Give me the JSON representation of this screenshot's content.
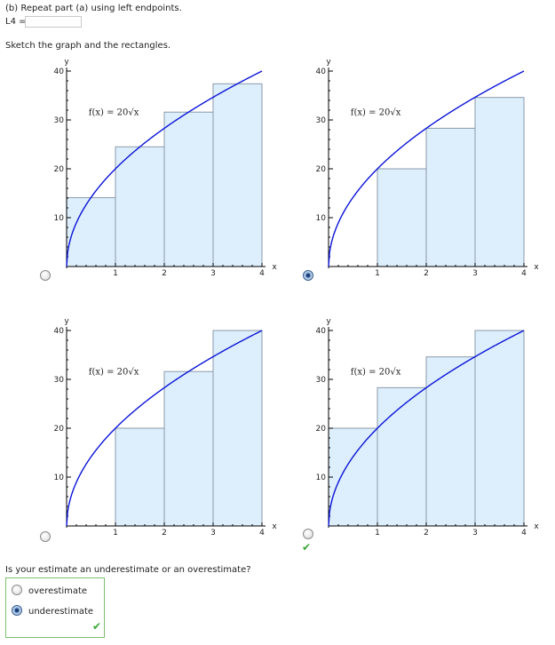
{
  "part_b": {
    "instruction": "(b) Repeat part (a) using left endpoints.",
    "l4_label": "L4 =",
    "l4_value": ""
  },
  "sketch_prompt": "Sketch the graph and the rectangles.",
  "options": [
    {
      "selected": false,
      "checkmark": ""
    },
    {
      "selected": true,
      "checkmark": ""
    },
    {
      "selected": false,
      "checkmark": ""
    },
    {
      "selected": false,
      "checkmark": "✔"
    }
  ],
  "graph": {
    "function_label": "f(x) = 20√x",
    "x_axis_label": "x",
    "y_axis_label": "y",
    "x_ticks": [
      "1",
      "2",
      "3",
      "4"
    ],
    "y_ticks": [
      "10",
      "20",
      "30",
      "40"
    ],
    "curve_color": "#0a14d8",
    "rect_fill": "#ddeefc",
    "rect_stroke": "#8a9aaa"
  },
  "chart_data": [
    {
      "type": "bar",
      "title": "",
      "function": "20*sqrt(x)",
      "xlim": [
        0,
        4
      ],
      "ylim": [
        0,
        40
      ],
      "rects": [
        {
          "x0": 0,
          "x1": 1,
          "h": 14.1
        },
        {
          "x0": 1,
          "x1": 2,
          "h": 24.5
        },
        {
          "x0": 2,
          "x1": 3,
          "h": 31.6
        },
        {
          "x0": 3,
          "x1": 4,
          "h": 37.4
        }
      ]
    },
    {
      "type": "bar",
      "title": "",
      "function": "20*sqrt(x)",
      "xlim": [
        0,
        4
      ],
      "ylim": [
        0,
        40
      ],
      "rects": [
        {
          "x0": 0,
          "x1": 1,
          "h": 0
        },
        {
          "x0": 1,
          "x1": 2,
          "h": 20
        },
        {
          "x0": 2,
          "x1": 3,
          "h": 28.3
        },
        {
          "x0": 3,
          "x1": 4,
          "h": 34.6
        }
      ]
    },
    {
      "type": "bar",
      "title": "",
      "function": "20*sqrt(x)",
      "xlim": [
        0,
        4
      ],
      "ylim": [
        0,
        40
      ],
      "rects": [
        {
          "x0": 1,
          "x1": 2,
          "h": 20
        },
        {
          "x0": 2,
          "x1": 3,
          "h": 31.6
        },
        {
          "x0": 3,
          "x1": 4,
          "h": 40
        }
      ]
    },
    {
      "type": "bar",
      "title": "",
      "function": "20*sqrt(x)",
      "xlim": [
        0,
        4
      ],
      "ylim": [
        0,
        40
      ],
      "rects": [
        {
          "x0": 0,
          "x1": 1,
          "h": 20
        },
        {
          "x0": 1,
          "x1": 2,
          "h": 28.3
        },
        {
          "x0": 2,
          "x1": 3,
          "h": 34.6
        },
        {
          "x0": 3,
          "x1": 4,
          "h": 40
        }
      ]
    }
  ],
  "estimate_question": "Is your estimate an underestimate or an overestimate?",
  "estimate_options": [
    {
      "label": "overestimate",
      "selected": false
    },
    {
      "label": "underestimate",
      "selected": true
    }
  ],
  "estimate_checkmark": "✔"
}
